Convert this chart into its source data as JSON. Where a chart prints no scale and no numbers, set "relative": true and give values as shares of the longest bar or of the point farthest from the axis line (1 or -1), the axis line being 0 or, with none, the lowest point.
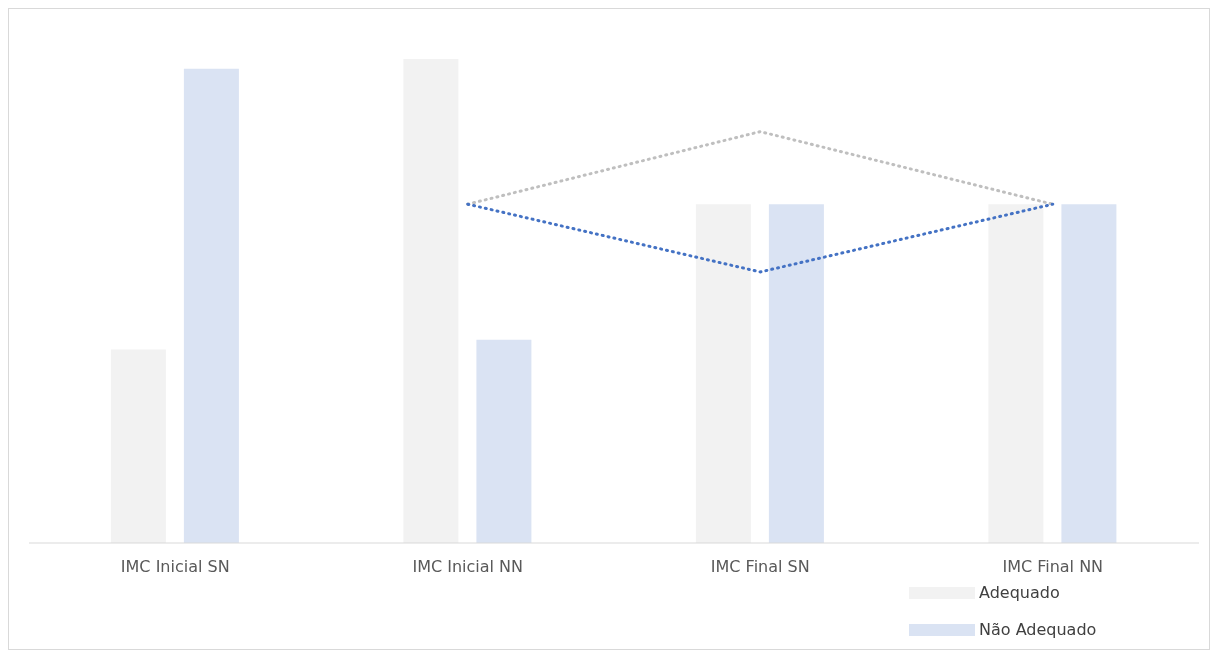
{
  "chart_data": {
    "type": "bar",
    "relative": true,
    "categories": [
      "IMC Inicial SN",
      "IMC Inicial NN",
      "IMC Final SN",
      "IMC Final NN"
    ],
    "series": [
      {
        "name": "Adequado",
        "color": "#f2f2f2",
        "values": [
          0.4,
          1,
          0.7,
          0.7
        ]
      },
      {
        "name": "Não Adequado",
        "color": "#dae3f3",
        "values": [
          0.98,
          0.42,
          0.7,
          0.7
        ]
      },
      {
        "type": "line",
        "color": "#bfbfbf",
        "x": [
          "IMC Inicial NN",
          "IMC Final SN",
          "IMC Final NN"
        ],
        "values": [
          0.7,
          0.85,
          0.7
        ],
        "line_style": "dotted",
        "marker": "none"
      },
      {
        "type": "line",
        "color": "#4472c4",
        "x": [
          "IMC Inicial NN",
          "IMC Final SN",
          "IMC Final NN"
        ],
        "values": [
          0.7,
          0.56,
          0.7
        ],
        "line_style": "dotted",
        "marker": "none"
      }
    ],
    "grid": false,
    "legend": "bottom right"
  }
}
